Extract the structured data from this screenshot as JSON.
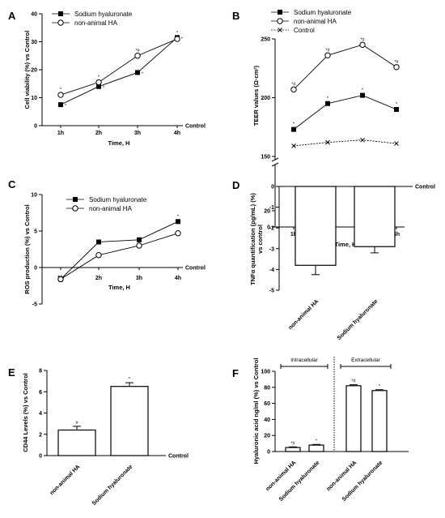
{
  "chart_data": [
    {
      "panel": "A",
      "type": "line",
      "x": [
        "1h",
        "2h",
        "3h",
        "4h"
      ],
      "xlabel": "Time, H",
      "ylabel": "Cell viability (%) vs Control",
      "ylim": [
        0,
        40
      ],
      "yticks": [
        "0",
        "10",
        "20",
        "30",
        "40"
      ],
      "baseline_label": "Control",
      "legend": "top-left",
      "series": [
        {
          "name": "Sodium hyaluronate",
          "marker": "filled-square",
          "values": [
            7.5,
            14,
            19,
            31.5
          ],
          "annotations": [
            "*",
            "*",
            "*",
            "*"
          ]
        },
        {
          "name": "non-animal HA",
          "marker": "open-circle",
          "values": [
            11,
            15.5,
            25,
            31
          ],
          "annotations": [
            "*",
            "*",
            "*#",
            "*"
          ]
        }
      ]
    },
    {
      "panel": "B",
      "type": "line",
      "x": [
        "1h",
        "2h",
        "3h",
        "4h"
      ],
      "xlabel": "Time, H",
      "ylabel": "TEER values (Ω·cm²)",
      "ylim_upper": [
        150,
        250
      ],
      "ylim_lower": [
        0,
        20
      ],
      "yticks": [
        "0",
        "20",
        "150",
        "200",
        "250"
      ],
      "legend": "top-left",
      "series": [
        {
          "name": "Sodium hyaluronate",
          "marker": "filled-square",
          "values": [
            173,
            195,
            202,
            190
          ],
          "annotations": [
            "*",
            "*",
            "*",
            "*"
          ]
        },
        {
          "name": "non-animal HA",
          "marker": "open-circle",
          "values": [
            207,
            236,
            245,
            226
          ],
          "annotations": [
            "*#",
            "*#",
            "*#",
            "*#"
          ]
        },
        {
          "name": "Control",
          "marker": "cross",
          "values": [
            159,
            162,
            164,
            161
          ]
        }
      ]
    },
    {
      "panel": "C",
      "type": "line",
      "x": [
        "1h",
        "2h",
        "3h",
        "4h"
      ],
      "xlabel": "Time, H",
      "ylabel": "ROS production (%) vs Control",
      "ylim": [
        -5,
        10
      ],
      "yticks": [
        "-5",
        "0",
        "5",
        "10"
      ],
      "baseline_label": "Control",
      "legend": "top-left",
      "series": [
        {
          "name": "Sodium hyaluronate",
          "marker": "filled-square",
          "values": [
            -1.6,
            3.5,
            3.8,
            6.3
          ],
          "annotations": [
            "",
            "",
            "",
            "*"
          ]
        },
        {
          "name": "non-animal HA",
          "marker": "open-circle",
          "values": [
            -1.6,
            1.7,
            3.0,
            4.7
          ],
          "annotations": [
            "",
            "",
            "",
            ""
          ]
        }
      ]
    },
    {
      "panel": "D",
      "type": "bar",
      "categories": [
        "non-animal HA",
        "Sodium hyaluronate"
      ],
      "values": [
        -3.8,
        -2.9
      ],
      "errors": [
        0.45,
        0.3
      ],
      "ylabel": "TNFα quantification (pg/mL) (%) vs control",
      "ylim": [
        -5,
        0
      ],
      "yticks": [
        "0",
        "-1",
        "-2",
        "-3",
        "-4",
        "-5"
      ],
      "baseline_label": "Control"
    },
    {
      "panel": "E",
      "type": "bar",
      "categories": [
        "non-animal HA",
        "Sodium hyaluronate"
      ],
      "values": [
        2.4,
        6.5
      ],
      "errors": [
        0.35,
        0.35
      ],
      "annotations": [
        "#",
        "*"
      ],
      "ylabel": "CD44 Levels (%) vs Control",
      "ylim": [
        0,
        8
      ],
      "yticks": [
        "0",
        "2",
        "4",
        "6",
        "8"
      ],
      "baseline_label": "Control"
    },
    {
      "panel": "F",
      "type": "bar",
      "groups": [
        "Intracellular",
        "Extracellular"
      ],
      "categories": [
        "non-animal HA",
        "Sodium hyaluronate",
        "non-animal HA",
        "Sodium hyaluronate"
      ],
      "values": [
        5,
        8,
        82,
        76
      ],
      "errors": [
        0.8,
        0.8,
        1.2,
        1.0
      ],
      "annotations": [
        "*#",
        "*",
        "*#",
        "*"
      ],
      "ylabel": "Hyaluronic acid ng/ml (%) vs Control",
      "ylim": [
        0,
        100
      ],
      "yticks": [
        "0",
        "20",
        "40",
        "60",
        "80",
        "100"
      ]
    }
  ]
}
